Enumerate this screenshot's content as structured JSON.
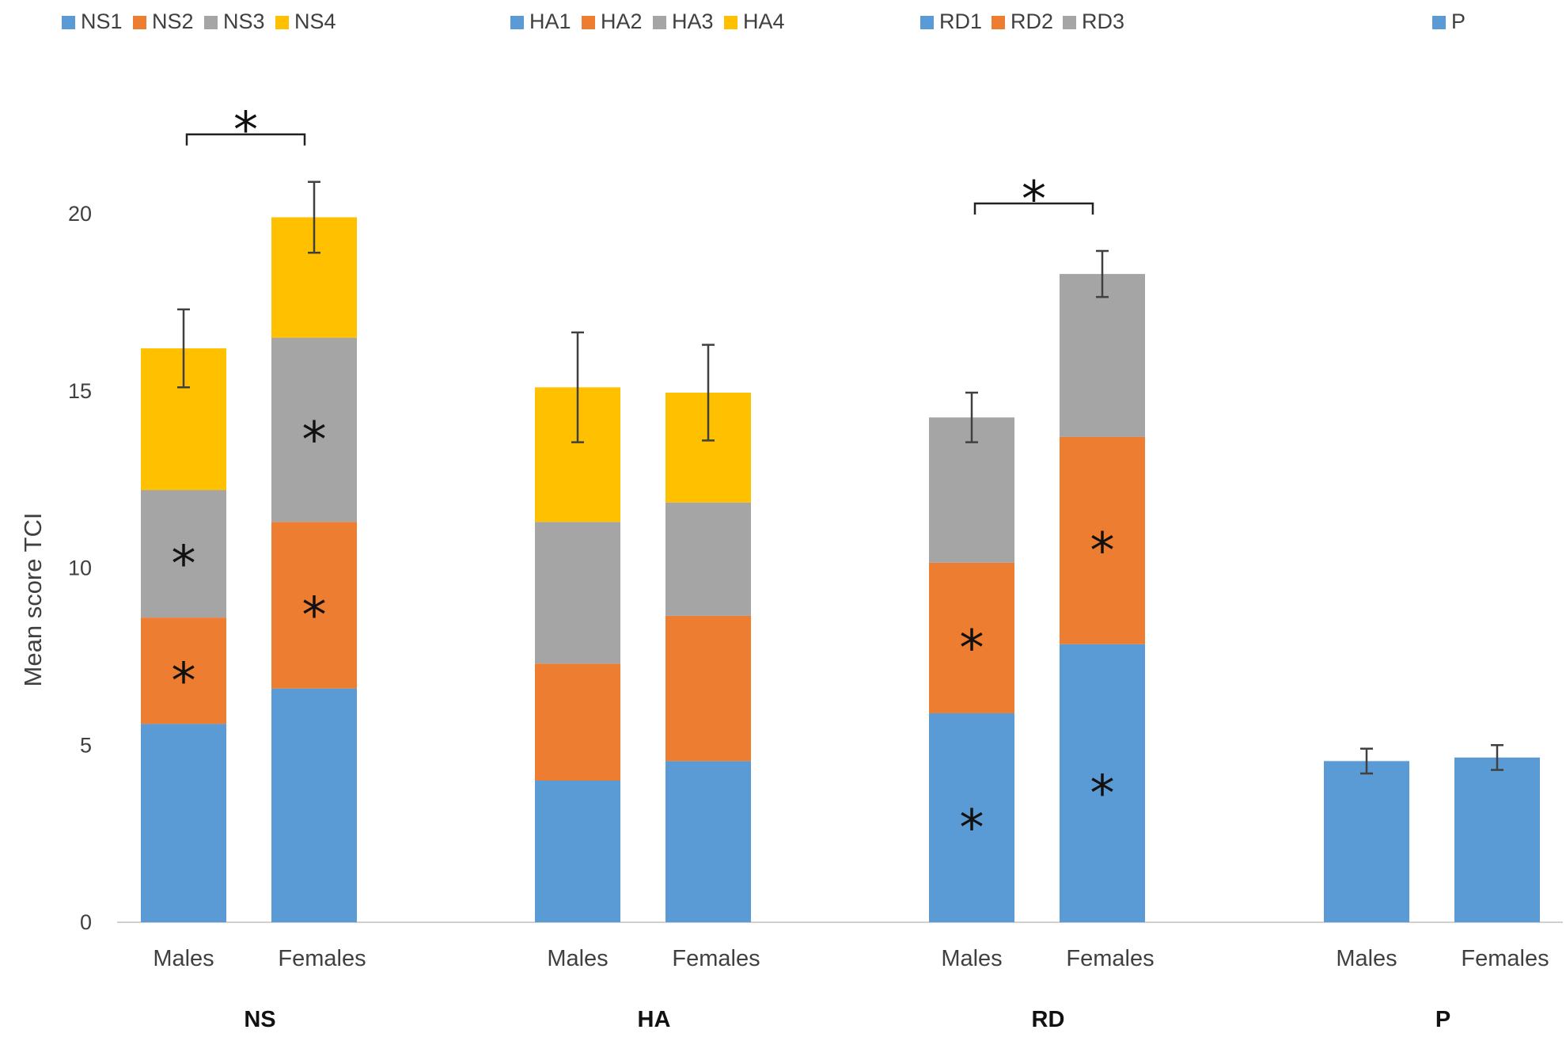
{
  "chart_data": {
    "type": "bar",
    "stacked": true,
    "ylabel": "Mean score TCI",
    "ylim": [
      0,
      20
    ],
    "yticks": [
      0,
      5,
      10,
      15,
      20
    ],
    "colors": {
      "c1": "#5B9BD5",
      "c2": "#ED7D31",
      "c3": "#A5A5A5",
      "c4": "#FFC000"
    },
    "significance_symbol": "*",
    "groups": [
      {
        "name": "NS",
        "legend": [
          "NS1",
          "NS2",
          "NS3",
          "NS4"
        ],
        "bars": [
          {
            "label": "Males",
            "segments": [
              5.6,
              3.0,
              3.6,
              4.0
            ],
            "total": 16.2,
            "error": 1.1,
            "stars": [
              false,
              true,
              true,
              false
            ]
          },
          {
            "label": "Females",
            "segments": [
              6.6,
              4.7,
              5.2,
              3.4
            ],
            "total": 19.9,
            "error": 1.0,
            "stars": [
              false,
              true,
              true,
              false
            ]
          }
        ],
        "bracket": true
      },
      {
        "name": "HA",
        "legend": [
          "HA1",
          "HA2",
          "HA3",
          "HA4"
        ],
        "bars": [
          {
            "label": "Males",
            "segments": [
              4.0,
              3.3,
              4.0,
              3.8
            ],
            "total": 15.1,
            "error": 1.55,
            "stars": [
              false,
              false,
              false,
              false
            ]
          },
          {
            "label": "Females",
            "segments": [
              4.55,
              4.1,
              3.2,
              3.1
            ],
            "total": 14.95,
            "error": 1.35,
            "stars": [
              false,
              false,
              false,
              false
            ]
          }
        ],
        "bracket": false
      },
      {
        "name": "RD",
        "legend": [
          "RD1",
          "RD2",
          "RD3"
        ],
        "bars": [
          {
            "label": "Males",
            "segments": [
              5.9,
              4.25,
              4.1
            ],
            "total": 14.25,
            "error": 0.7,
            "stars": [
              true,
              true,
              false
            ]
          },
          {
            "label": "Females",
            "segments": [
              7.85,
              5.85,
              4.6
            ],
            "total": 18.3,
            "error": 0.65,
            "stars": [
              true,
              true,
              false
            ]
          }
        ],
        "bracket": true
      },
      {
        "name": "P",
        "legend": [
          "P"
        ],
        "bars": [
          {
            "label": "Males",
            "segments": [
              4.55
            ],
            "total": 4.55,
            "error": 0.35,
            "stars": [
              false
            ]
          },
          {
            "label": "Females",
            "segments": [
              4.65
            ],
            "total": 4.65,
            "error": 0.35,
            "stars": [
              false
            ]
          }
        ],
        "bracket": false
      }
    ]
  }
}
